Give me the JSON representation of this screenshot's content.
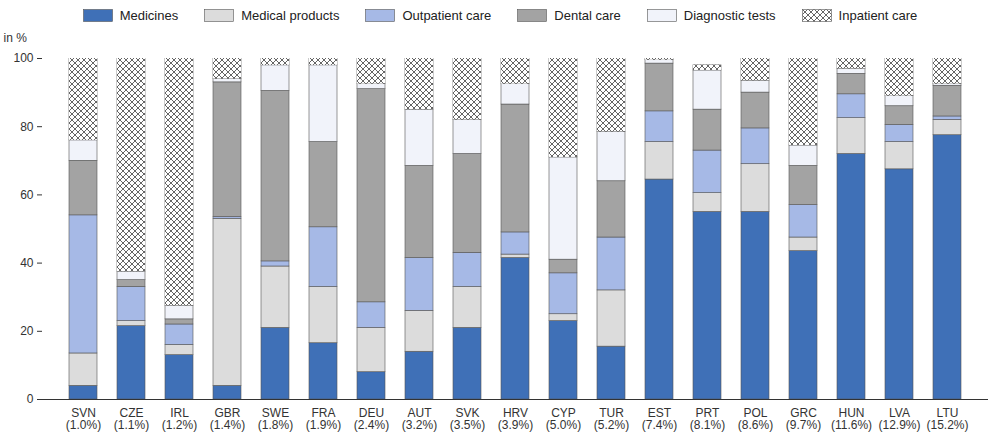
{
  "chart_data": {
    "type": "bar",
    "stacked": true,
    "grid": false,
    "legend": "top",
    "y_label": "in %",
    "ylim": [
      0,
      100
    ],
    "yticks": [
      0,
      20,
      40,
      60,
      80,
      100
    ],
    "categories": [
      "SVN\n(1.0%)",
      "CZE\n(1.1%)",
      "IRL\n(1.2%)",
      "GBR\n(1.4%)",
      "SWE\n(1.8%)",
      "FRA\n(1.9%)",
      "DEU\n(2.4%)",
      "AUT\n(3.2%)",
      "SVK\n(3.5%)",
      "HRV\n(3.9%)",
      "CYP\n(5.0%)",
      "TUR\n(5.2%)",
      "EST\n(7.4%)",
      "PRT\n(8.1%)",
      "POL\n(8.6%)",
      "GRC\n(9.7%)",
      "HUN\n(11.6%)",
      "LVA\n(12.9%)",
      "LTU\n(15.2%)"
    ],
    "series": [
      {
        "name": "Medicines",
        "color": "#3f70b7",
        "values": [
          4,
          21.5,
          13,
          4,
          21,
          16.5,
          8,
          14,
          21,
          41.5,
          23,
          15.5,
          64.5,
          55,
          55,
          43.5,
          72,
          67.5,
          77.5
        ]
      },
      {
        "name": "Medical products",
        "color": "#dcdcdc",
        "values": [
          9.5,
          1.5,
          3,
          49,
          18,
          16.5,
          13,
          12,
          12,
          1,
          2,
          16.5,
          11,
          5.5,
          14,
          4,
          10.5,
          8,
          4.5
        ]
      },
      {
        "name": "Outpatient care",
        "color": "#a6b9e6",
        "values": [
          40.5,
          10,
          6,
          0.5,
          1.5,
          17.5,
          7.5,
          15.5,
          10,
          6.5,
          12,
          15.5,
          9,
          12.5,
          10.5,
          9.5,
          7,
          5,
          1
        ]
      },
      {
        "name": "Dental care",
        "color": "#a3a3a3",
        "values": [
          16,
          2,
          1.5,
          39.5,
          50,
          25,
          62.5,
          27,
          29,
          37.5,
          4,
          16.5,
          14,
          12,
          10.5,
          11.5,
          6,
          5.5,
          9
        ]
      },
      {
        "name": "Diagnostic tests",
        "color": "#f1f3fa",
        "values": [
          6,
          2.5,
          4,
          1,
          7.5,
          22.5,
          1.5,
          16.5,
          10,
          6,
          30,
          14.5,
          1,
          11.5,
          3.5,
          6,
          1.5,
          3,
          0.5
        ]
      },
      {
        "name": "Inpatient care",
        "color": "#ffffff",
        "line_style": "crosshatch",
        "values": [
          24,
          62.5,
          72.5,
          6,
          2,
          2,
          7.5,
          15,
          18,
          7.5,
          29,
          21.5,
          0.5,
          1.5,
          6.5,
          25.5,
          3,
          11,
          7.5
        ]
      }
    ]
  }
}
